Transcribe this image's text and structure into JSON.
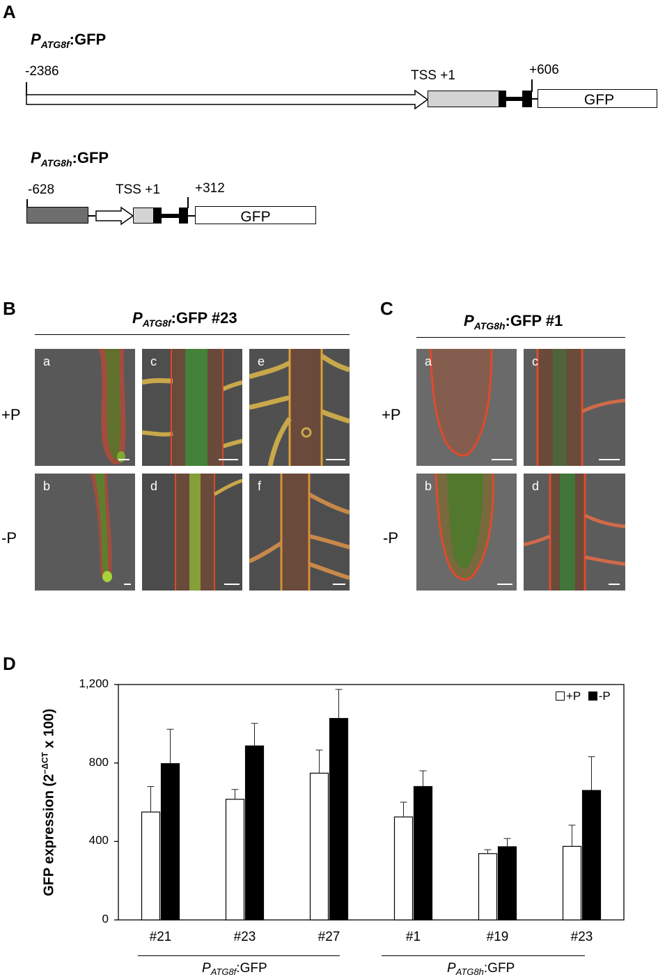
{
  "panel_a": {
    "letter": "A",
    "construct1": {
      "title_p": "P",
      "title_sub": "ATG8f",
      "title_suffix": ":GFP",
      "start": "-2386",
      "tss": "TSS +1",
      "end": "+606",
      "reporter": "GFP"
    },
    "construct2": {
      "title_p": "P",
      "title_sub": "ATG8h",
      "title_suffix": ":GFP",
      "start": "-628",
      "tss": "TSS +1",
      "end": "+312",
      "reporter": "GFP"
    }
  },
  "panel_b": {
    "letter": "B",
    "title_p": "P",
    "title_sub": "ATG8f",
    "title_suffix": ":GFP #23",
    "row_plus": "+P",
    "row_minus": "-P",
    "images": [
      "a",
      "b",
      "c",
      "d",
      "e",
      "f"
    ]
  },
  "panel_c": {
    "letter": "C",
    "title_p": "P",
    "title_sub": "ATG8h",
    "title_suffix": ":GFP #1",
    "row_plus": "+P",
    "row_minus": "-P",
    "images": [
      "a",
      "b",
      "c",
      "d"
    ]
  },
  "panel_d": {
    "letter": "D",
    "group1_p": "P",
    "group1_sub": "ATG8f",
    "group1_suffix": ":GFP",
    "group2_p": "P",
    "group2_sub": "ATG8h",
    "group2_suffix": ":GFP"
  },
  "chart_data": {
    "type": "bar",
    "categories": [
      "#21",
      "#23",
      "#27",
      "#1",
      "#19",
      "#23"
    ],
    "series": [
      {
        "name": "+P",
        "values": [
          550,
          615,
          748,
          525,
          338,
          375
        ],
        "errors": [
          130,
          50,
          118,
          75,
          20,
          108
        ],
        "color": "#ffffff"
      },
      {
        "name": "-P",
        "values": [
          797,
          887,
          1027,
          680,
          373,
          660
        ],
        "errors": [
          175,
          115,
          148,
          80,
          42,
          172
        ],
        "color": "#000000"
      }
    ],
    "ylabel": "GFP expression (2⁻ᶜᵀ x 100)",
    "ylabel_parts": {
      "main": "GFP expression (2",
      "exp": "−ΔCT",
      "tail": " x 100)"
    },
    "yticks": [
      "0",
      "400",
      "800",
      "1,200"
    ],
    "ylim": [
      0,
      1200
    ],
    "legend_position": "top-right"
  }
}
